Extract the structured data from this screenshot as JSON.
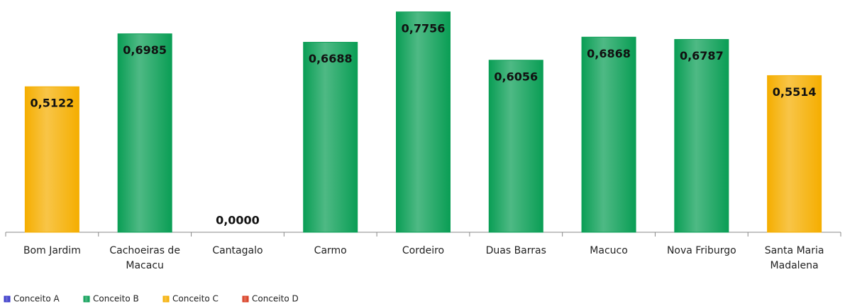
{
  "chart_data": {
    "type": "bar",
    "categories": [
      "Bom Jardim",
      "Cachoeiras de Macacu",
      "Cantagalo",
      "Carmo",
      "Cordeiro",
      "Duas Barras",
      "Macuco",
      "Nova Friburgo",
      "Santa Maria Madalena"
    ],
    "values": [
      0.5122,
      0.6985,
      0,
      0.6688,
      0.7756,
      0.6056,
      0.6868,
      0.6787,
      0.5514
    ],
    "value_labels": [
      "0,5122",
      "0,6985",
      "0,0000",
      "0,6688",
      "0,7756",
      "0,6056",
      "0,6868",
      "0,6787",
      "0,5514"
    ],
    "colors": [
      "#f5ae00",
      "#0a9e55",
      "#d83a1e",
      "#0a9e55",
      "#0a9e55",
      "#0a9e55",
      "#0a9e55",
      "#0a9e55",
      "#f5ae00"
    ],
    "ylim": [
      0,
      0.8
    ],
    "legend": [
      {
        "name": "Conceito A",
        "color": "#3636c8"
      },
      {
        "name": "Conceito B",
        "color": "#0a9e55"
      },
      {
        "name": "Conceito C",
        "color": "#f5ae00"
      },
      {
        "name": "Conceito D",
        "color": "#d83a1e"
      }
    ]
  }
}
